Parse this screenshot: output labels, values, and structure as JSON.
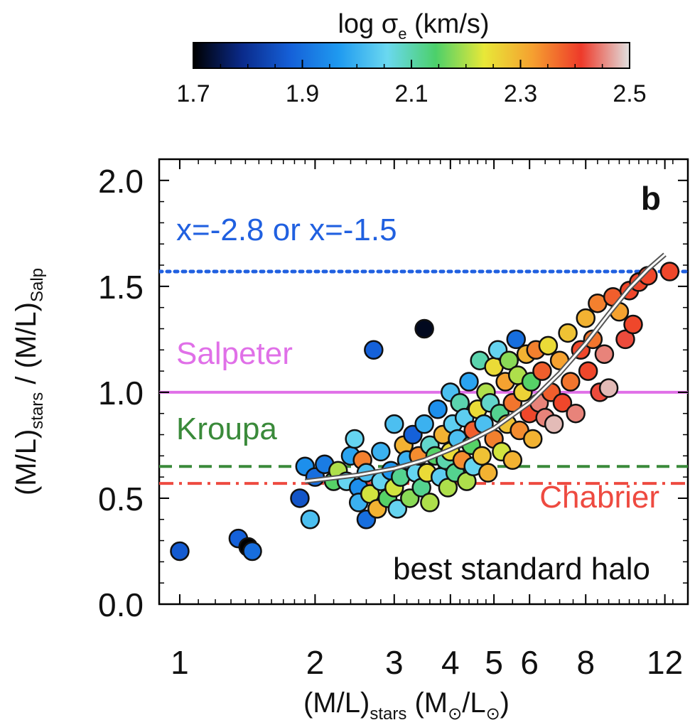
{
  "chart_data": {
    "type": "scatter",
    "panel_label": "b",
    "colorbar": {
      "title_parts": {
        "main": "log σ",
        "sub": "e",
        "tail": " (km/s)"
      },
      "range": [
        1.7,
        2.5
      ],
      "ticks": [
        "1.7",
        "1.9",
        "2.1",
        "2.3",
        "2.5"
      ],
      "colormap": [
        "#000000",
        "#0a2a8a",
        "#1560d8",
        "#1f9af0",
        "#6ad8f0",
        "#4cd06a",
        "#e8e838",
        "#f5a030",
        "#ee3a2a",
        "#e0e0e0"
      ]
    },
    "x_axis": {
      "scale": "log",
      "range": [
        0.9,
        13.5
      ],
      "tick_labels": [
        "1",
        "2",
        "3",
        "4",
        "5",
        "6",
        "8",
        "12"
      ],
      "label_parts": {
        "a": "(M/L)",
        "b": "stars",
        "c": " (M",
        "d": "/L",
        "e": ")"
      }
    },
    "y_axis": {
      "range": [
        0.0,
        2.1
      ],
      "tick_labels": [
        "0.0",
        "0.5",
        "1.0",
        "1.5",
        "2.0"
      ],
      "label_parts": {
        "a": "(M/L)",
        "b": "stars",
        "c": " / (M/L)",
        "d": "Salp"
      }
    },
    "reference_lines": [
      {
        "name": "x=-2.8 or x=-1.5",
        "y": 1.57,
        "style": "dotted",
        "color": "#2060e0"
      },
      {
        "name": "Salpeter",
        "y": 1.0,
        "style": "solid",
        "color": "#e070e8"
      },
      {
        "name": "Kroupa",
        "y": 0.65,
        "style": "dashed",
        "color": "#3a8a3a"
      },
      {
        "name": "Chabrier",
        "y": 0.57,
        "style": "dashdot",
        "color": "#ee4a40"
      }
    ],
    "fit_curve": {
      "label": "best standard halo",
      "points": [
        [
          1.9,
          0.58
        ],
        [
          2.5,
          0.61
        ],
        [
          3.0,
          0.64
        ],
        [
          3.5,
          0.68
        ],
        [
          4.0,
          0.73
        ],
        [
          4.5,
          0.78
        ],
        [
          5.0,
          0.83
        ],
        [
          6.0,
          0.95
        ],
        [
          7.0,
          1.09
        ],
        [
          8.0,
          1.23
        ],
        [
          9.0,
          1.37
        ],
        [
          10.0,
          1.49
        ],
        [
          11.0,
          1.58
        ],
        [
          12.0,
          1.65
        ]
      ]
    },
    "points": [
      [
        1.0,
        0.25,
        1.87
      ],
      [
        1.35,
        0.31,
        1.88
      ],
      [
        1.42,
        0.27,
        1.7
      ],
      [
        1.45,
        0.25,
        1.9
      ],
      [
        1.85,
        0.5,
        1.86
      ],
      [
        1.95,
        0.4,
        2.02
      ],
      [
        1.9,
        0.65,
        1.95
      ],
      [
        2.0,
        0.6,
        1.9
      ],
      [
        2.1,
        0.66,
        1.92
      ],
      [
        2.2,
        0.58,
        2.15
      ],
      [
        2.25,
        0.63,
        2.2
      ],
      [
        2.35,
        0.58,
        2.05
      ],
      [
        2.4,
        0.7,
        1.98
      ],
      [
        2.45,
        0.78,
        2.05
      ],
      [
        2.5,
        0.55,
        1.95
      ],
      [
        2.5,
        0.48,
        2.0
      ],
      [
        2.55,
        0.68,
        2.35
      ],
      [
        2.6,
        0.62,
        2.02
      ],
      [
        2.6,
        0.4,
        1.9
      ],
      [
        2.65,
        0.52,
        2.22
      ],
      [
        2.7,
        1.2,
        1.88
      ],
      [
        2.75,
        0.45,
        2.3
      ],
      [
        2.8,
        0.58,
        2.05
      ],
      [
        2.8,
        0.72,
        2.0
      ],
      [
        2.9,
        0.5,
        2.15
      ],
      [
        2.95,
        0.63,
        1.96
      ],
      [
        3.0,
        0.85,
        2.02
      ],
      [
        3.0,
        0.55,
        2.22
      ],
      [
        3.05,
        0.45,
        2.05
      ],
      [
        3.1,
        0.6,
        2.12
      ],
      [
        3.15,
        0.75,
        2.3
      ],
      [
        3.2,
        0.68,
        2.0
      ],
      [
        3.25,
        0.5,
        2.18
      ],
      [
        3.3,
        0.8,
        1.88
      ],
      [
        3.35,
        0.62,
        2.05
      ],
      [
        3.4,
        0.7,
        2.34
      ],
      [
        3.45,
        0.55,
        2.12
      ],
      [
        3.5,
        1.3,
        1.72
      ],
      [
        3.5,
        0.85,
        2.0
      ],
      [
        3.55,
        0.62,
        2.25
      ],
      [
        3.6,
        0.75,
        2.08
      ],
      [
        3.6,
        0.48,
        2.2
      ],
      [
        3.7,
        0.7,
        2.15
      ],
      [
        3.75,
        0.92,
        1.95
      ],
      [
        3.8,
        0.6,
        2.04
      ],
      [
        3.85,
        0.8,
        2.3
      ],
      [
        3.9,
        0.68,
        2.1
      ],
      [
        3.95,
        0.55,
        2.2
      ],
      [
        4.0,
        1.0,
        2.02
      ],
      [
        4.0,
        0.72,
        2.25
      ],
      [
        4.05,
        0.85,
        2.04
      ],
      [
        4.1,
        0.62,
        2.12
      ],
      [
        4.15,
        0.78,
        2.02
      ],
      [
        4.2,
        0.95,
        2.1
      ],
      [
        4.25,
        0.68,
        2.34
      ],
      [
        4.3,
        0.88,
        2.04
      ],
      [
        4.35,
        0.58,
        2.2
      ],
      [
        4.4,
        1.05,
        1.98
      ],
      [
        4.45,
        0.75,
        2.15
      ],
      [
        4.5,
        0.82,
        2.38
      ],
      [
        4.5,
        0.65,
        2.05
      ],
      [
        4.6,
        0.92,
        2.25
      ],
      [
        4.65,
        1.15,
        2.1
      ],
      [
        4.7,
        0.7,
        2.28
      ],
      [
        4.75,
        0.85,
        2.02
      ],
      [
        4.8,
        1.0,
        2.2
      ],
      [
        4.85,
        0.62,
        2.3
      ],
      [
        4.9,
        0.95,
        2.08
      ],
      [
        5.0,
        1.12,
        2.25
      ],
      [
        5.0,
        0.78,
        2.35
      ],
      [
        5.1,
        1.2,
        2.05
      ],
      [
        5.15,
        0.9,
        2.12
      ],
      [
        5.2,
        0.72,
        2.22
      ],
      [
        5.3,
        1.05,
        2.32
      ],
      [
        5.35,
        0.85,
        2.28
      ],
      [
        5.4,
        1.15,
        2.18
      ],
      [
        5.5,
        0.95,
        2.36
      ],
      [
        5.5,
        0.68,
        2.3
      ],
      [
        5.6,
        1.25,
        1.9
      ],
      [
        5.65,
        1.08,
        2.2
      ],
      [
        5.7,
        0.82,
        2.34
      ],
      [
        5.8,
        1.0,
        2.26
      ],
      [
        5.9,
        1.18,
        2.3
      ],
      [
        6.0,
        0.9,
        2.4
      ],
      [
        6.05,
        1.05,
        2.15
      ],
      [
        6.1,
        0.78,
        2.3
      ],
      [
        6.2,
        1.2,
        2.35
      ],
      [
        6.3,
        0.95,
        2.45
      ],
      [
        6.4,
        1.1,
        2.38
      ],
      [
        6.5,
        0.88,
        2.45
      ],
      [
        6.6,
        1.22,
        2.25
      ],
      [
        6.7,
        1.0,
        2.38
      ],
      [
        6.8,
        0.85,
        2.48
      ],
      [
        7.0,
        1.15,
        2.32
      ],
      [
        7.1,
        0.95,
        2.4
      ],
      [
        7.3,
        1.28,
        2.28
      ],
      [
        7.4,
        1.05,
        2.36
      ],
      [
        7.6,
        0.9,
        2.45
      ],
      [
        7.8,
        1.2,
        2.4
      ],
      [
        8.0,
        1.35,
        2.3
      ],
      [
        8.1,
        1.1,
        2.4
      ],
      [
        8.3,
        1.25,
        2.36
      ],
      [
        8.5,
        1.42,
        2.35
      ],
      [
        8.6,
        1.0,
        2.42
      ],
      [
        8.8,
        1.18,
        2.45
      ],
      [
        9.0,
        1.02,
        2.48
      ],
      [
        9.2,
        1.45,
        2.38
      ],
      [
        9.5,
        1.38,
        2.32
      ],
      [
        9.8,
        1.25,
        2.42
      ],
      [
        10.0,
        1.48,
        2.4
      ],
      [
        10.2,
        1.32,
        2.4
      ],
      [
        10.5,
        1.52,
        2.4
      ],
      [
        11.0,
        1.55,
        2.4
      ],
      [
        12.3,
        1.57,
        2.4
      ]
    ]
  }
}
